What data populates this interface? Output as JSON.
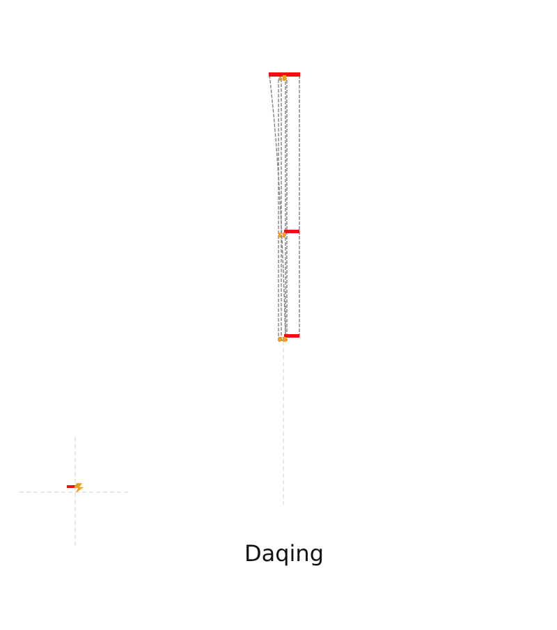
{
  "caption": "Daqing",
  "colors": {
    "background": "#ffffff",
    "track_highlight": "#ee1111",
    "outline_dashed": "#808080",
    "axis_guides": "#d8d8d8",
    "marker_orange": "#f0a020",
    "caption_text": "#111111"
  },
  "icons": {
    "direction_marker": "lightning-bolt-icon"
  }
}
